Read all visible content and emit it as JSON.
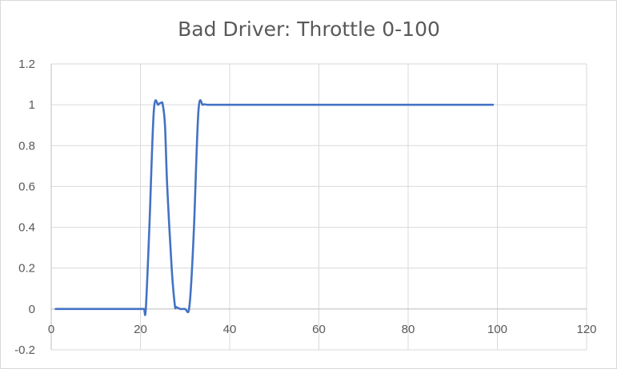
{
  "chart_data": {
    "type": "line",
    "title": "Bad Driver: Throttle 0-100",
    "xlabel": "",
    "ylabel": "",
    "xlim": [
      0,
      120
    ],
    "ylim": [
      -0.2,
      1.2
    ],
    "x_ticks": [
      "0",
      "20",
      "40",
      "60",
      "80",
      "100",
      "120"
    ],
    "y_ticks": [
      "-0.2",
      "0",
      "0.2",
      "0.4",
      "0.6",
      "0.8",
      "1",
      "1.2"
    ],
    "grid": true,
    "legend": "none",
    "series": [
      {
        "color": "#4472c4",
        "x": [
          1,
          5,
          10,
          15,
          20,
          20.8,
          21.2,
          22,
          23,
          24,
          24.7,
          25,
          25.5,
          26,
          27,
          27.7,
          28,
          29,
          30,
          30.8,
          31.3,
          32,
          33,
          34,
          35,
          36,
          40,
          50,
          60,
          70,
          80,
          90,
          99
        ],
        "y": [
          0,
          0,
          0,
          0,
          0,
          0,
          0,
          0.4,
          0.97,
          1.0,
          1.01,
          1.0,
          0.9,
          0.6,
          0.2,
          0.02,
          0.01,
          0.0,
          0.0,
          -0.01,
          0.1,
          0.4,
          0.97,
          1.0,
          1.0,
          1.0,
          1.0,
          1.0,
          1.0,
          1.0,
          1.0,
          1.0,
          1.0
        ]
      }
    ]
  }
}
